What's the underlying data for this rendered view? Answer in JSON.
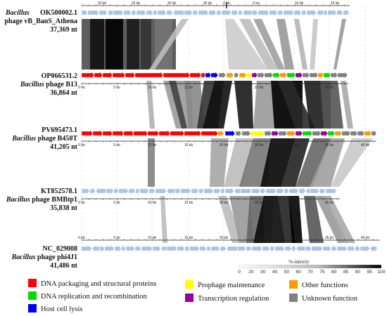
{
  "genomes": [
    {
      "accession": "OK500002.1",
      "name_italic": "Bacillus",
      "name_rest": "phage vB_BanS_Athena",
      "length": "37,369 nt",
      "ruler_labels": [
        "20 kb",
        "25 kb",
        "30 kb",
        "35 kb",
        "0 kb",
        "5 kb",
        "10 kb",
        "15 kb"
      ]
    },
    {
      "accession": "OP066531.2",
      "name_italic": "Bacillus",
      "name_rest": "phage B13",
      "length": "36,864 nt",
      "ruler_labels": [
        "0 kb",
        "5 kb",
        "10 kb",
        "15 kb",
        "20 kb",
        "25 kb",
        "30 kb",
        "35 kb"
      ]
    },
    {
      "accession": "PV695473.1",
      "name_italic": "Bacillus",
      "name_rest": "phage  B450T",
      "length": "41,205 nt",
      "ruler_labels": [
        "0 kb",
        "5 kb",
        "10 kb",
        "15 kb",
        "20 kb",
        "25 kb",
        "30 kb",
        "35 kb",
        "40 kb"
      ]
    },
    {
      "accession": "KT852578.1",
      "name_italic": "Bacillus",
      "name_rest": "phage BMBtp1",
      "length": "35,838 nt",
      "ruler_labels": [
        "0 kb",
        "5 kb",
        "10 kb",
        "15 kb",
        "20 kb",
        "25 kb",
        "30 kb",
        "35 kb"
      ]
    },
    {
      "accession": "NC_029008",
      "name_italic": "Bacillus",
      "name_rest": "phage phi4J1",
      "length": "41,486 nt",
      "ruler_labels": [
        "0 kb",
        "5 kb",
        "10 kb",
        "15 kb",
        "20 kb",
        "25 kb",
        "30 kb",
        "35 kb",
        "40 kb"
      ]
    }
  ],
  "legend": [
    {
      "label": "DNA packaging and structural proteins",
      "color": "#ff0000"
    },
    {
      "label": "DNA replication and recombination",
      "color": "#00dd00"
    },
    {
      "label": "Host cell lysis",
      "color": "#0000ff"
    },
    {
      "label": "Prophage maintenance",
      "color": "#ffff00"
    },
    {
      "label": "Transcription regulation",
      "color": "#990099"
    },
    {
      "label": "Other functions",
      "color": "#ff9900"
    },
    {
      "label": "Unknown function",
      "color": "#808080"
    }
  ],
  "identity_scale": {
    "title": "%-identity",
    "ticks": [
      "0",
      "20",
      "30",
      "40",
      "50",
      "60",
      "70",
      "75",
      "80",
      "85",
      "90",
      "95",
      "100"
    ]
  },
  "colors": {
    "unannotated_gene": "#a9c4e8",
    "structural": "#ff0000",
    "lysis": "#0000ff",
    "other": "#ff9900",
    "unknown": "#808080",
    "replication": "#00dd00",
    "maintenance": "#ffff00",
    "regulation": "#990099"
  }
}
